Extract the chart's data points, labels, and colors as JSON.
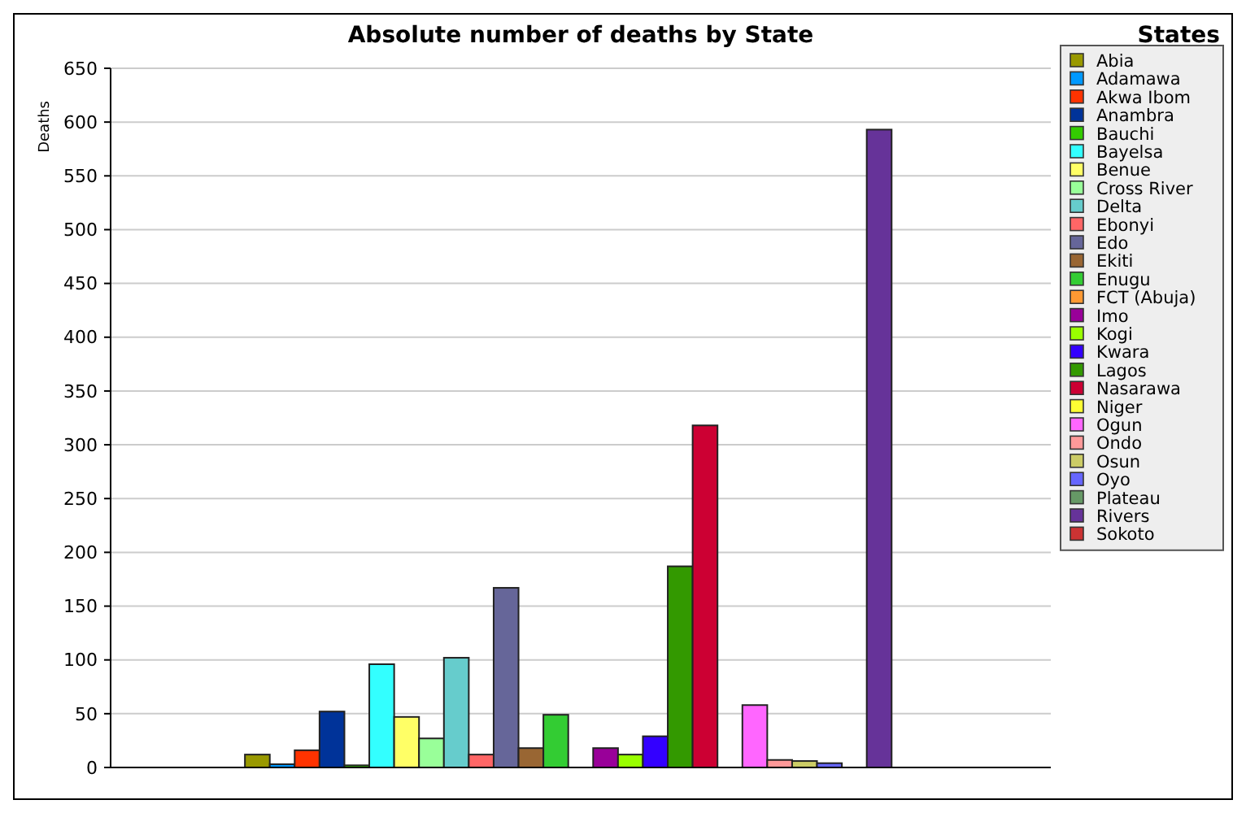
{
  "chart_data": {
    "type": "bar",
    "title": "Absolute number of deaths by State",
    "ylabel": "Deaths",
    "legend_title": "States",
    "legend": "right",
    "grid": "y",
    "categories": [
      null
    ],
    "ylim": [
      0,
      650
    ],
    "yticks": [
      0,
      50,
      100,
      150,
      200,
      250,
      300,
      350,
      400,
      450,
      500,
      550,
      600,
      650
    ],
    "series": [
      {
        "name": "Abia",
        "color": "#999900",
        "values": [
          12
        ]
      },
      {
        "name": "Adamawa",
        "color": "#0099ff",
        "values": [
          3
        ]
      },
      {
        "name": "Akwa Ibom",
        "color": "#ff3300",
        "values": [
          16
        ]
      },
      {
        "name": "Anambra",
        "color": "#003399",
        "values": [
          52
        ]
      },
      {
        "name": "Bauchi",
        "color": "#33cc00",
        "values": [
          2
        ]
      },
      {
        "name": "Bayelsa",
        "color": "#33ffff",
        "values": [
          96
        ]
      },
      {
        "name": "Benue",
        "color": "#ffff66",
        "values": [
          47
        ]
      },
      {
        "name": "Cross River",
        "color": "#99ff99",
        "values": [
          27
        ]
      },
      {
        "name": "Delta",
        "color": "#66cccc",
        "values": [
          102
        ]
      },
      {
        "name": "Ebonyi",
        "color": "#ff6666",
        "values": [
          12
        ]
      },
      {
        "name": "Edo",
        "color": "#666699",
        "values": [
          167
        ]
      },
      {
        "name": "Ekiti",
        "color": "#996633",
        "values": [
          18
        ]
      },
      {
        "name": "Enugu",
        "color": "#33cc33",
        "values": [
          49
        ]
      },
      {
        "name": "FCT (Abuja)",
        "color": "#ff9933",
        "values": [
          0
        ]
      },
      {
        "name": "Imo",
        "color": "#990099",
        "values": [
          18
        ]
      },
      {
        "name": "Kogi",
        "color": "#99ff00",
        "values": [
          12
        ]
      },
      {
        "name": "Kwara",
        "color": "#3300ff",
        "values": [
          29
        ]
      },
      {
        "name": "Lagos",
        "color": "#339900",
        "values": [
          187
        ]
      },
      {
        "name": "Nasarawa",
        "color": "#cc0033",
        "values": [
          318
        ]
      },
      {
        "name": "Niger",
        "color": "#ffff33",
        "values": [
          0
        ]
      },
      {
        "name": "Ogun",
        "color": "#ff66ff",
        "values": [
          58
        ]
      },
      {
        "name": "Ondo",
        "color": "#ff9999",
        "values": [
          7
        ]
      },
      {
        "name": "Osun",
        "color": "#cccc66",
        "values": [
          6
        ]
      },
      {
        "name": "Oyo",
        "color": "#6666ff",
        "values": [
          4
        ]
      },
      {
        "name": "Plateau",
        "color": "#669966",
        "values": [
          0
        ]
      },
      {
        "name": "Rivers",
        "color": "#663399",
        "values": [
          593
        ]
      },
      {
        "name": "Sokoto",
        "color": "#cc3333",
        "values": [
          0
        ]
      }
    ]
  }
}
